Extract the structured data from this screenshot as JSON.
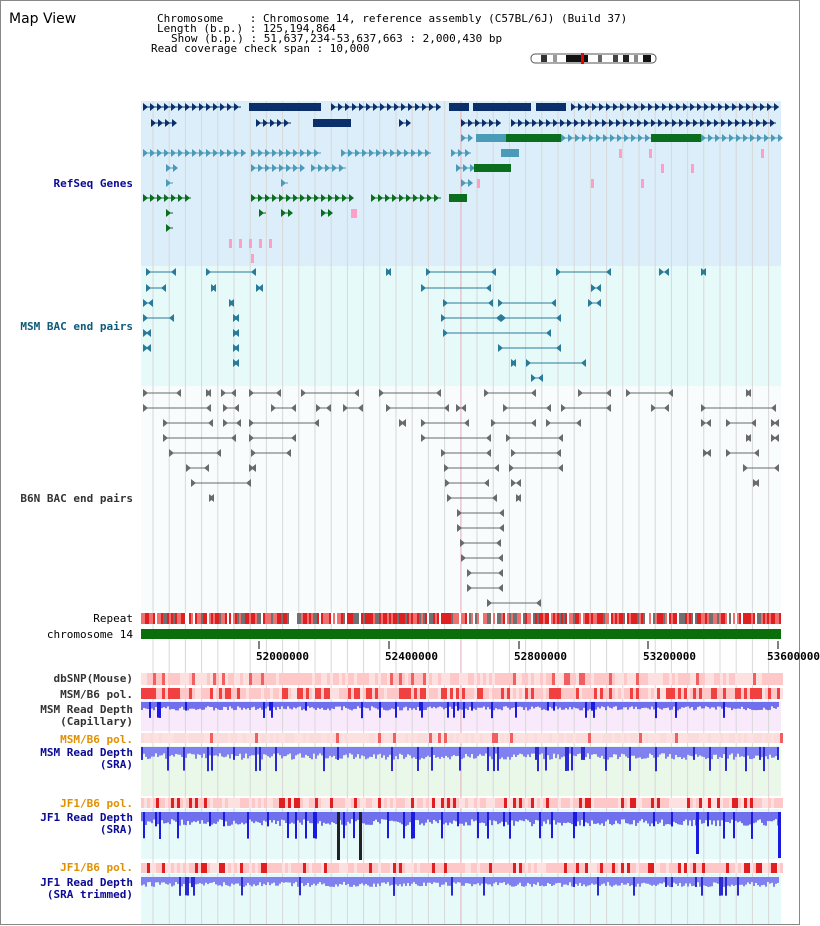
{
  "header": {
    "map_view": "Map View",
    "chromosome_line": "Chromosome    : Chromosome 14, reference assembly (C57BL/6J) (Build 37)",
    "length_line": "Length (b.p.) : 125,194,864",
    "show_line": "Show (b.p.) : 51,637,234-53,637,663 : 2,000,430 bp",
    "coverage_line": "Read coverage check span : 10,000"
  },
  "tracks": {
    "refseq": "RefSeq Genes",
    "msm_bac": "MSM BAC end pairs",
    "b6n_bac": "B6N BAC end pairs",
    "repeat": "Repeat",
    "chromosome": "chromosome 14",
    "dbsnp": "dbSNP(Mouse)",
    "msm_b6_pol_1": "MSM/B6 pol.",
    "msm_depth_cap_1": "MSM Read Depth",
    "msm_depth_cap_2": "(Capillary)",
    "msm_b6_pol_2": "MSM/B6 pol.",
    "msm_depth_sra_1": "MSM Read Depth",
    "msm_depth_sra_2": "(SRA)",
    "jf1_b6_pol_1": "JF1/B6 pol.",
    "jf1_depth_sra_1": "JF1 Read Depth",
    "jf1_depth_sra_2": "(SRA)",
    "jf1_b6_pol_2": "JF1/B6 pol.",
    "jf1_depth_trim_1": "JF1 Read Depth",
    "jf1_depth_trim_2": "(SRA trimmed)"
  },
  "axis": {
    "ticks": [
      "52000000",
      "52400000",
      "52800000",
      "53200000",
      "53600000"
    ]
  },
  "colors": {
    "refseq_bg": "#dbeefa",
    "bac_bg": "#e6fafa",
    "b6n_bg": "#f8fcfc",
    "gene_navy": "#0a2f6b",
    "gene_teal": "#4a9ab8",
    "gene_green": "#0a6e1e",
    "pink": "#ff9ec6",
    "chromosome": "#0a6e0a",
    "depth_blue": "#3535e0",
    "pol_red": "#f02020",
    "pol_pink": "#ffc8c8"
  }
}
